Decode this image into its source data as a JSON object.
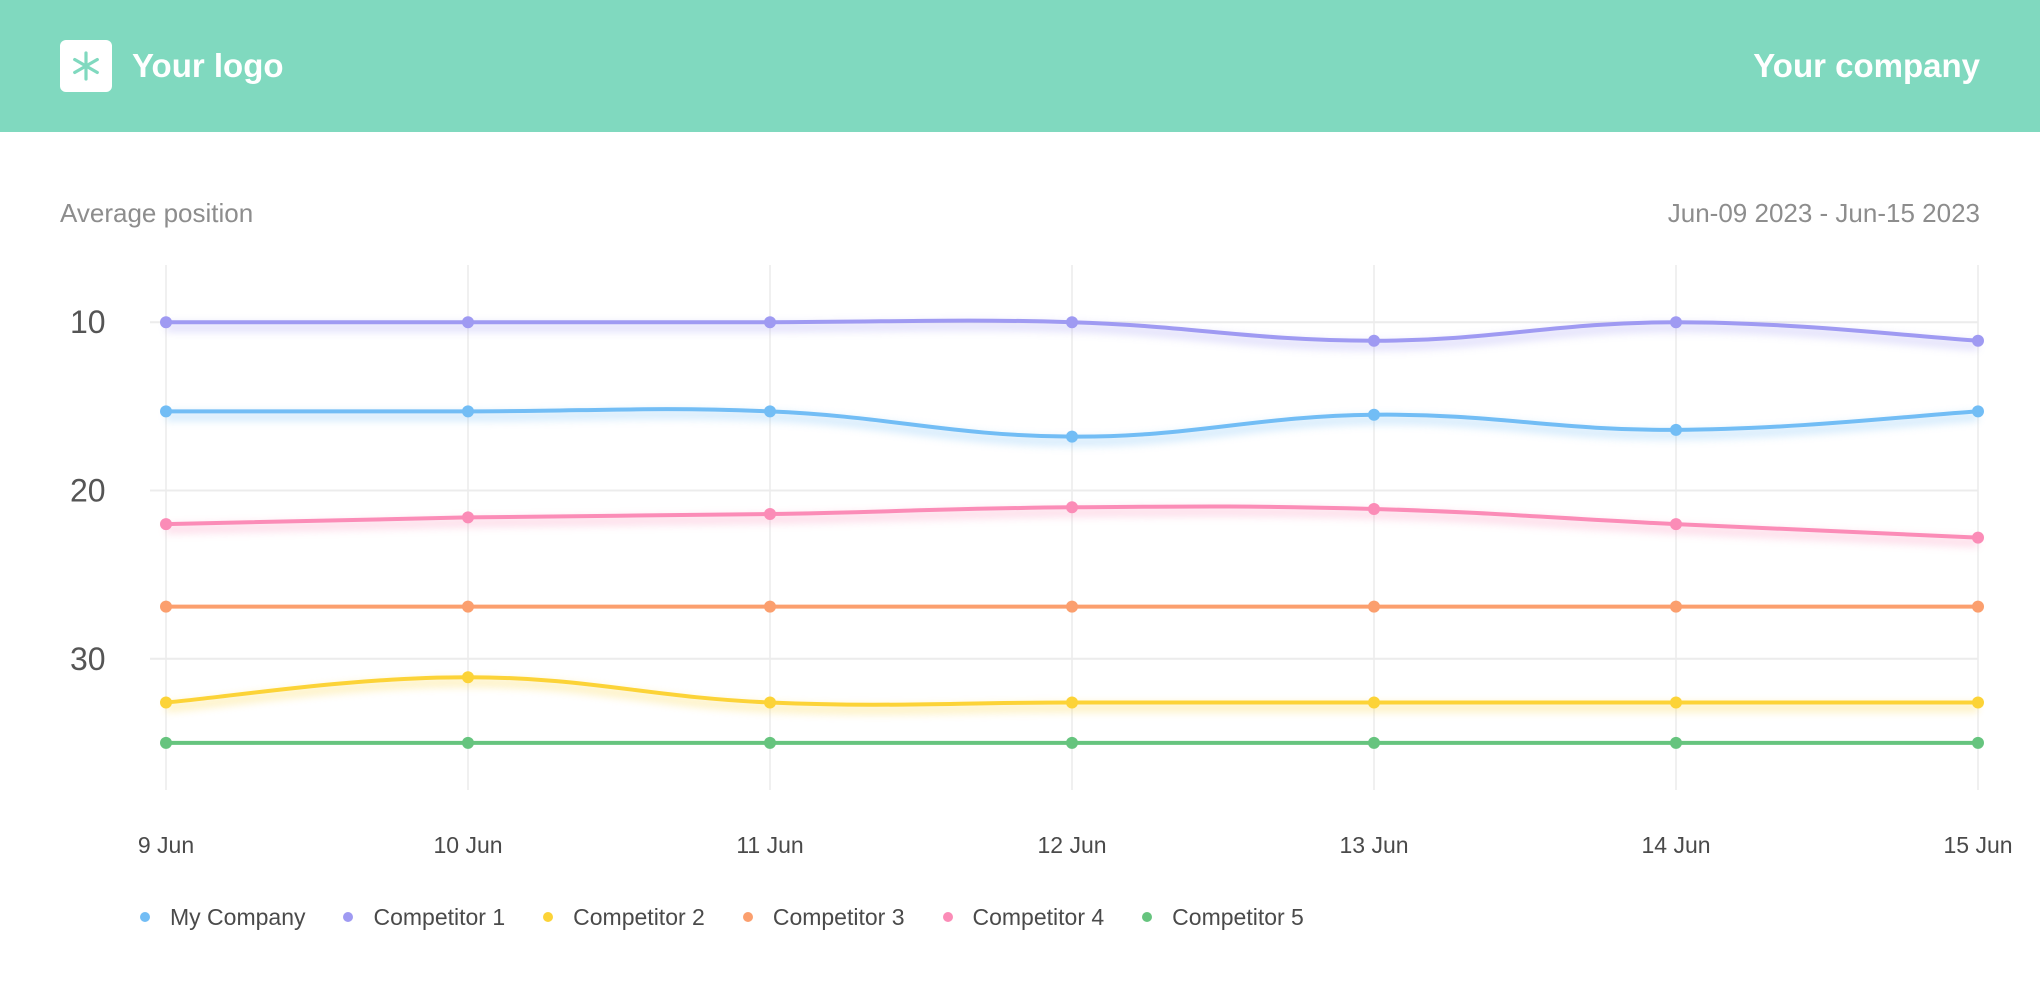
{
  "header": {
    "logo_label": "Your logo",
    "company_label": "Your company",
    "logo_icon": "asterisk-icon"
  },
  "colors": {
    "header_bg": "#80d9bf",
    "grid": "#ececec",
    "axis_text": "#555555"
  },
  "chart_data": {
    "type": "line",
    "title": "Average position",
    "date_range": "Jun-09 2023 - Jun-15 2023",
    "xlabel": "",
    "ylabel": "",
    "x": [
      "9 Jun",
      "10 Jun",
      "11 Jun",
      "12 Jun",
      "13 Jun",
      "14 Jun",
      "15 Jun"
    ],
    "y_ticks": [
      "10",
      "20",
      "30"
    ],
    "ylim": [
      6.6,
      37.8
    ],
    "y_inverted": true,
    "grid": true,
    "legend_position": "bottom-left",
    "series": [
      {
        "name": "My Company",
        "color": "#72bdf5",
        "values": [
          15.3,
          15.3,
          15.3,
          16.8,
          15.5,
          16.4,
          15.3
        ]
      },
      {
        "name": "Competitor 1",
        "color": "#9f9af2",
        "values": [
          10.0,
          10.0,
          10.0,
          10.0,
          11.1,
          10.0,
          11.1
        ]
      },
      {
        "name": "Competitor 2",
        "color": "#fcd337",
        "values": [
          32.6,
          31.1,
          32.6,
          32.6,
          32.6,
          32.6,
          32.6
        ]
      },
      {
        "name": "Competitor 3",
        "color": "#fb9f6e",
        "values": [
          26.9,
          26.9,
          26.9,
          26.9,
          26.9,
          26.9,
          26.9
        ]
      },
      {
        "name": "Competitor 4",
        "color": "#fb8cb7",
        "values": [
          22.0,
          21.6,
          21.4,
          21.0,
          21.1,
          22.0,
          22.8
        ]
      },
      {
        "name": "Competitor 5",
        "color": "#66c47e",
        "values": [
          35.0,
          35.0,
          35.0,
          35.0,
          35.0,
          35.0,
          35.0
        ]
      }
    ]
  }
}
